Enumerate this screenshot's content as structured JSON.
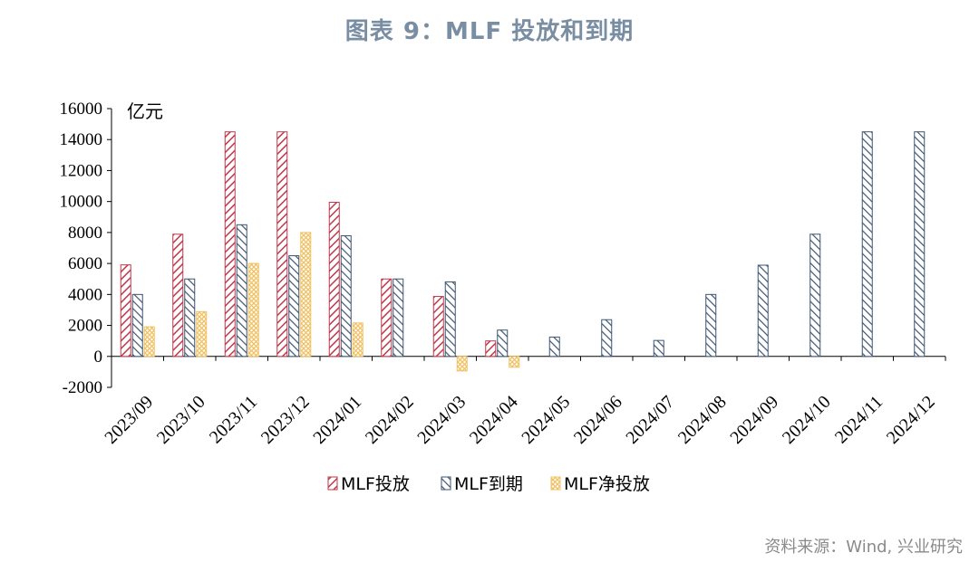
{
  "title": "图表 9：MLF 投放和到期",
  "source": "资料来源：Wind, 兴业研究",
  "chart_data": {
    "type": "bar",
    "unit_label": "亿元",
    "categories": [
      "2023/09",
      "2023/10",
      "2023/11",
      "2023/12",
      "2024/01",
      "2024/02",
      "2024/03",
      "2024/04",
      "2024/05",
      "2024/06",
      "2024/07",
      "2024/08",
      "2024/09",
      "2024/10",
      "2024/11",
      "2024/12"
    ],
    "series": [
      {
        "name": "MLF投放",
        "color": "#c0394b",
        "values": [
          5910,
          7890,
          14500,
          14500,
          9950,
          5000,
          3870,
          1000,
          null,
          null,
          null,
          null,
          null,
          null,
          null,
          null
        ]
      },
      {
        "name": "MLF到期",
        "color": "#3f5570",
        "values": [
          4000,
          5000,
          8500,
          6500,
          7790,
          5000,
          4810,
          1700,
          1250,
          2370,
          1030,
          4000,
          5890,
          7890,
          14500,
          14500
        ]
      },
      {
        "name": "MLF净投放",
        "color": "#f0c060",
        "values": [
          1910,
          2890,
          6000,
          8000,
          2160,
          0,
          -940,
          -700,
          null,
          null,
          null,
          null,
          null,
          null,
          null,
          null
        ]
      }
    ],
    "ylim": [
      -2000,
      16000
    ],
    "yticks": [
      -2000,
      0,
      2000,
      4000,
      6000,
      8000,
      10000,
      12000,
      14000,
      16000
    ],
    "legend_position": "bottom",
    "grid": false
  }
}
